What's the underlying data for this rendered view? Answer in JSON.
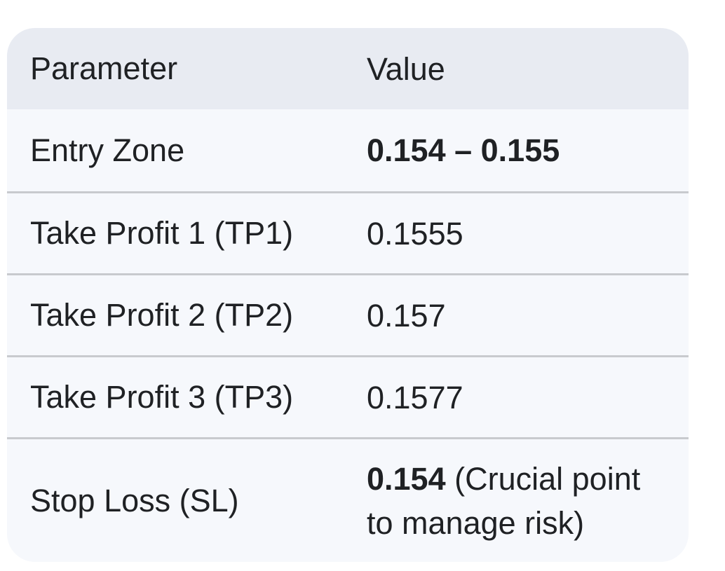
{
  "colors": {
    "page_bg": "#ffffff",
    "header_bg": "#e8ebf2",
    "row_bg": "#f6f8fc",
    "divider": "#c8cace",
    "text": "#1f2124"
  },
  "table": {
    "headers": [
      "Parameter",
      "Value"
    ],
    "rows": [
      {
        "parameter": "Entry Zone",
        "value": "0.154 – 0.155"
      },
      {
        "parameter": "Take Profit 1 (TP1)",
        "value": "0.1555"
      },
      {
        "parameter": "Take Profit 2 (TP2)",
        "value": "0.157"
      },
      {
        "parameter": "Take Profit 3 (TP3)",
        "value": "0.1577"
      },
      {
        "parameter": "Stop Loss (SL)",
        "value_bold": "0.154",
        "value_note": " (Crucial point to manage risk)"
      }
    ]
  }
}
